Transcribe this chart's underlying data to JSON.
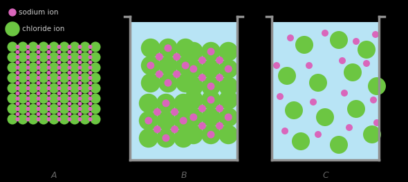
{
  "background_color": "#000000",
  "cl_color": "#6cc642",
  "na_color": "#d966bb",
  "legend_sodium_label": "sodium ion",
  "legend_chloride_label": "chloride ion",
  "legend_text_color": "#cccccc",
  "beaker_fill": "#b8e4f5",
  "beaker_edge": "#909090",
  "label_color": "#666666",
  "label_A": "A",
  "label_B": "B",
  "label_C": "C"
}
